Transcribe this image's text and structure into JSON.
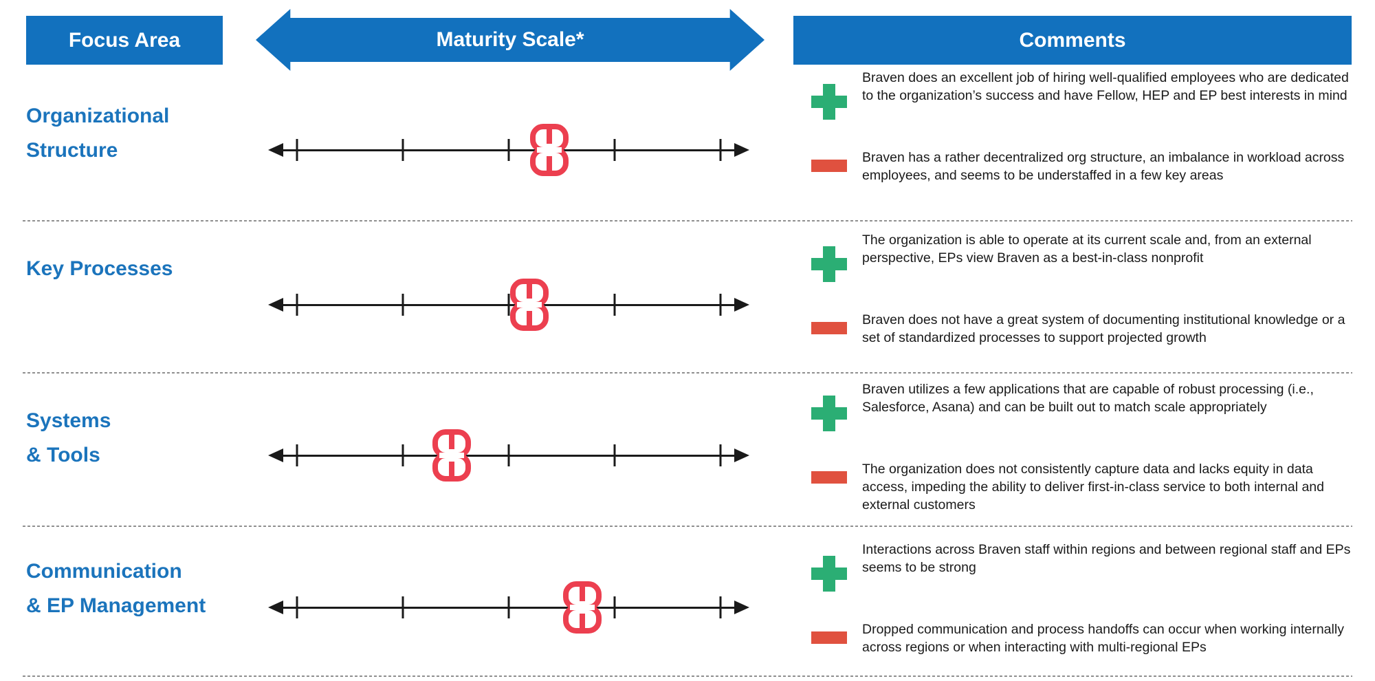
{
  "header": {
    "focus_area_label": "Focus Area",
    "maturity_scale_label": "Maturity Scale*",
    "comments_label": "Comments"
  },
  "colors": {
    "header_blue": "#1271BE",
    "label_blue": "#1B74BC",
    "plus_green": "#2BAE74",
    "minus_red": "#E0513F",
    "marker_red": "#EC3F4F",
    "scale_black": "#1a1a1a"
  },
  "scale": {
    "tick_count": 5,
    "tick_percents": [
      6,
      28,
      50,
      72,
      94
    ],
    "marker_icon": "braven-logo-marker"
  },
  "rows": [
    {
      "label_lines": [
        "Organizational",
        "Structure"
      ],
      "marker_percent": 58.4,
      "positive": "Braven does an excellent job of hiring well-qualified employees who are dedicated to the organization’s success and have Fellow, HEP and EP best interests in mind",
      "negative": "Braven has a rather decentralized org structure, an imbalance in workload across employees, and seems to be understaffed in a few key areas"
    },
    {
      "label_lines": [
        "Key Processes"
      ],
      "marker_percent": 54.3,
      "positive": "The organization is able to operate at its current scale and, from an external perspective, EPs view Braven as a best-in-class nonprofit",
      "negative": "Braven does not have a great system of documenting institutional knowledge or a set of standardized processes to support projected growth"
    },
    {
      "label_lines": [
        "Systems",
        "& Tools"
      ],
      "marker_percent": 38.1,
      "positive": "Braven utilizes a few applications that are capable of robust processing (i.e., Salesforce, Asana) and can be built out to match scale appropriately",
      "negative": "The organization does not consistently capture data and lacks equity in data access, impeding the ability to deliver first-in-class service to both internal and external customers"
    },
    {
      "label_lines": [
        "Communication",
        "& EP Management"
      ],
      "marker_percent": 65.3,
      "positive": "Interactions across Braven staff within regions and between regional staff and EPs seems to be strong",
      "negative": "Dropped communication and process handoffs can occur when working internally across regions or when interacting with multi-regional EPs"
    }
  ]
}
